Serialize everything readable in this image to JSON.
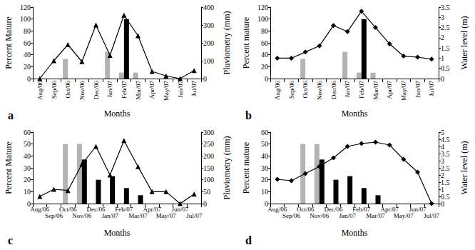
{
  "chart_data": [
    {
      "type": "bar",
      "title": "a",
      "x_label": "Months",
      "y_label": "Percent Mature",
      "y2_label": "Pluviometry (mm)",
      "categories": [
        "Aug/06",
        "Sep/06",
        "Oct/06",
        "Nov/06",
        "Dec/06",
        "Jan/07",
        "Feb/07",
        "Mar/07",
        "Apr/07",
        "May/07",
        "Jun/07",
        "Jul/07"
      ],
      "ylim": [
        0,
        120
      ],
      "yticks": [
        0,
        20,
        40,
        60,
        80,
        100,
        120
      ],
      "y2lim": [
        0,
        400
      ],
      "y2ticks": [
        0,
        100,
        200,
        300,
        400
      ],
      "grid": false,
      "series": [
        {
          "type": "bar",
          "color": "#b3b3b3",
          "values": [
            null,
            null,
            33,
            null,
            null,
            45,
            10,
            10,
            null,
            null,
            null,
            null
          ]
        },
        {
          "type": "bar",
          "color": "#000000",
          "values": [
            null,
            null,
            null,
            null,
            null,
            null,
            100,
            null,
            null,
            null,
            null,
            null
          ]
        },
        {
          "type": "line",
          "axis": "y2",
          "color": "#000000",
          "marker": "triangle",
          "values": [
            0,
            100,
            190,
            95,
            300,
            130,
            355,
            240,
            40,
            15,
            0,
            45
          ]
        }
      ]
    },
    {
      "type": "bar",
      "title": "b",
      "x_label": "Months",
      "y_label": "Percent mature",
      "y2_label": "Water level (m)",
      "categories": [
        "Aug/06",
        "Sep/06",
        "Oct/06",
        "Nov/06",
        "Dec/06",
        "Jan/07",
        "Feb/07",
        "Mar/07",
        "Apr/07",
        "May/07",
        "Jun/07",
        "Jul/07"
      ],
      "ylim": [
        0,
        120
      ],
      "yticks": [
        0,
        20,
        40,
        60,
        80,
        100,
        120
      ],
      "y2lim": [
        0,
        3.5
      ],
      "y2ticks": [
        0,
        0.5,
        1,
        1.5,
        2,
        2.5,
        3,
        3.5
      ],
      "grid": false,
      "series": [
        {
          "type": "bar",
          "color": "#b3b3b3",
          "values": [
            null,
            null,
            33,
            null,
            null,
            45,
            10,
            10,
            null,
            null,
            null,
            null
          ]
        },
        {
          "type": "bar",
          "color": "#000000",
          "values": [
            null,
            null,
            null,
            null,
            null,
            null,
            100,
            null,
            null,
            null,
            null,
            null
          ]
        },
        {
          "type": "line",
          "axis": "y2",
          "color": "#000000",
          "marker": "diamond",
          "values": [
            1.0,
            1.0,
            1.3,
            1.6,
            2.6,
            2.3,
            3.3,
            2.5,
            1.7,
            1.1,
            1.05,
            0.95
          ]
        }
      ]
    },
    {
      "type": "bar",
      "title": "c",
      "x_label": "Months",
      "y_label": "Percent Mature",
      "y2_label": "Pluviometry (mm)",
      "categories": [
        "Aug/06",
        "Sep/06",
        "Oct/06",
        "Nov/06",
        "Dec/06",
        "Jan/07",
        "Feb/07",
        "Mar/07",
        "Apr/07",
        "May/07",
        "Jun/07",
        "Jul/07"
      ],
      "ylim": [
        0,
        60
      ],
      "yticks": [
        0,
        10,
        20,
        30,
        40,
        50,
        60
      ],
      "y2lim": [
        0,
        300
      ],
      "y2ticks": [
        0,
        50,
        100,
        150,
        200,
        250,
        300
      ],
      "grid": false,
      "series": [
        {
          "type": "bar",
          "color": "#b3b3b3",
          "values": [
            null,
            null,
            50,
            50,
            null,
            null,
            null,
            null,
            null,
            null,
            null,
            null
          ]
        },
        {
          "type": "bar",
          "color": "#000000",
          "values": [
            null,
            null,
            null,
            37,
            20,
            23,
            13,
            7,
            null,
            null,
            null,
            null
          ]
        },
        {
          "type": "line",
          "axis": "y2",
          "color": "#000000",
          "marker": "triangle",
          "values": [
            30,
            60,
            55,
            165,
            240,
            120,
            265,
            155,
            50,
            50,
            0,
            40
          ]
        }
      ]
    },
    {
      "type": "bar",
      "title": "d",
      "x_label": "Months",
      "y_label": "Percent mature",
      "y2_label": "Water level (m)",
      "categories": [
        "Aug/06",
        "Sep/06",
        "Oct/06",
        "Nov/06",
        "Dec/06",
        "Jan/07",
        "Feb/07",
        "Mar/07",
        "Apr/07",
        "May/07",
        "Jun/07",
        "Jul/07"
      ],
      "ylim": [
        0,
        60
      ],
      "yticks": [
        0,
        10,
        20,
        30,
        40,
        50,
        60
      ],
      "y2lim": [
        0,
        5
      ],
      "y2ticks": [
        0,
        0.5,
        1,
        1.5,
        2,
        2.5,
        3,
        3.5,
        4,
        4.5,
        5
      ],
      "grid": false,
      "series": [
        {
          "type": "bar",
          "color": "#b3b3b3",
          "values": [
            null,
            null,
            50,
            50,
            null,
            null,
            null,
            null,
            null,
            null,
            null,
            null
          ]
        },
        {
          "type": "bar",
          "color": "#000000",
          "values": [
            null,
            null,
            null,
            37,
            20,
            23,
            13,
            7,
            null,
            null,
            null,
            null
          ]
        },
        {
          "type": "line",
          "axis": "y2",
          "color": "#000000",
          "marker": "diamond",
          "values": [
            1.7,
            1.6,
            2.1,
            2.6,
            3.2,
            4.0,
            4.2,
            4.3,
            4.1,
            3.1,
            2.2,
            0
          ]
        }
      ]
    }
  ]
}
